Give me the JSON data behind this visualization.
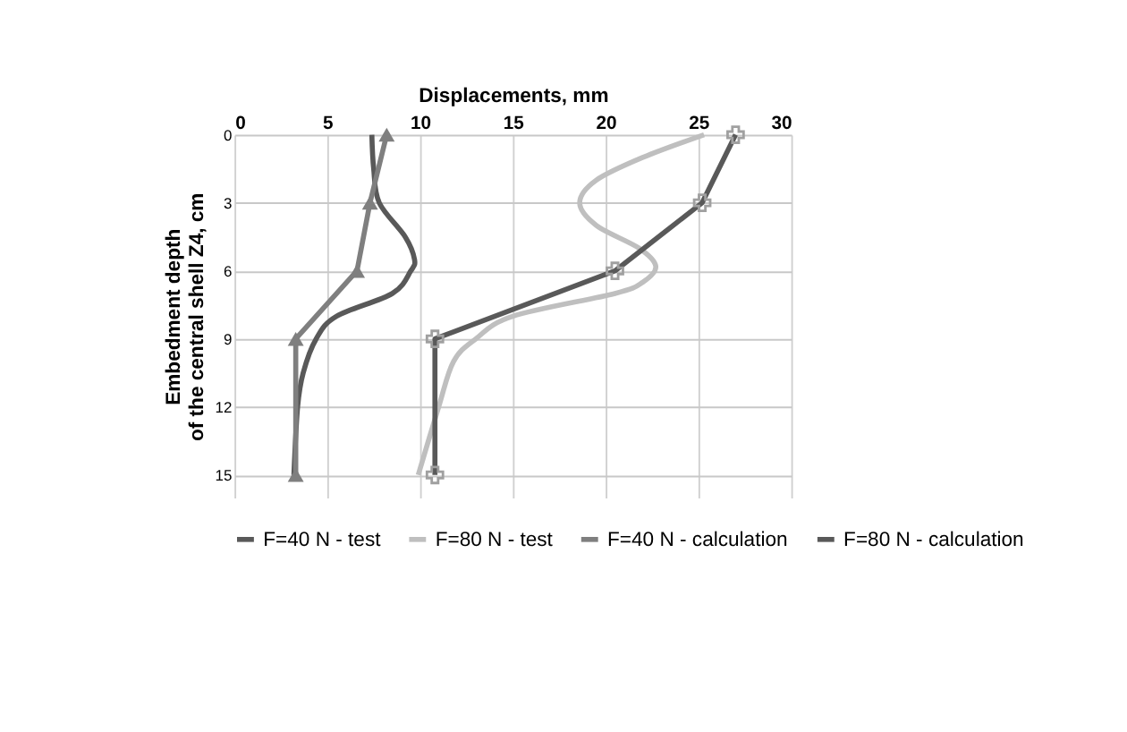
{
  "chart_data": {
    "type": "line",
    "xlabel": "Displacements, mm",
    "ylabel": "Embedment depth\nof the central shell Z4,  cm",
    "xlim": [
      0,
      30
    ],
    "xticks": [
      0,
      5,
      10,
      15,
      20,
      25,
      30
    ],
    "ylim": [
      16,
      0
    ],
    "yticks": [
      0,
      3,
      6,
      9,
      12,
      15
    ],
    "grid": true,
    "legend": "bottom",
    "series": [
      {
        "name": "F=40 N - test",
        "color": "#595959",
        "marker": "none",
        "x": [
          7.4,
          7.5,
          7.8,
          9.2,
          9.7,
          9.5,
          8.5,
          5.5,
          4.4,
          3.7,
          3.4,
          3.2
        ],
        "values": [
          0,
          1.5,
          3,
          4.5,
          5.5,
          6,
          7,
          8,
          9,
          10.5,
          12,
          15
        ]
      },
      {
        "name": "F=80 N - test",
        "color": "#bfbfbf",
        "marker": "none",
        "x": [
          25.3,
          22,
          19.5,
          18.6,
          19.5,
          21.8,
          22.7,
          22,
          20.5,
          15,
          13,
          11.8,
          11,
          9.9
        ],
        "values": [
          0,
          1,
          2,
          3,
          4,
          5,
          5.8,
          6.5,
          7,
          8,
          9,
          10,
          12,
          15
        ]
      },
      {
        "name": "F=40 N - calculation",
        "color": "#7f7f7f",
        "marker": "triangle",
        "x": [
          8.2,
          7.3,
          6.6,
          3.3,
          3.3
        ],
        "values": [
          0,
          3,
          6,
          9,
          15
        ]
      },
      {
        "name": "F=80 N - calculation",
        "color": "#595959",
        "marker": "cross",
        "x": [
          27,
          25.2,
          20.5,
          10.8,
          10.8
        ],
        "values": [
          0,
          3,
          6,
          9,
          15
        ]
      }
    ]
  }
}
